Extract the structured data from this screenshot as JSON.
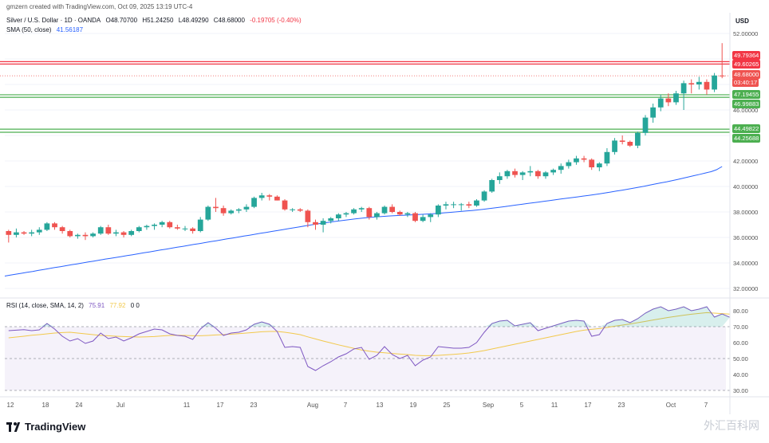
{
  "header": {
    "creator_line": "gmzern created with TradingView.com, Oct 09, 2025 13:19 UTC-4",
    "symbol": "Silver / U.S. Dollar · 1D · OANDA",
    "ohlc": [
      "O48.70700",
      "H51.24250",
      "L48.49290",
      "C48.68000",
      "-0.19705 (-0.40%)"
    ],
    "sma_label": "SMA (50, close)",
    "sma_value": "41.56187",
    "rsi_label": "RSI (14, close, SMA, 14, 2)",
    "rsi_value": "75.91",
    "rsi_sma_value": "77.92",
    "rsi_extra": "0  0"
  },
  "currency": "USD",
  "brand": "TradingView",
  "watermark": "外汇百科网",
  "price_tags": {
    "res1": "49.79364",
    "res2": "49.60265",
    "last": "48.68000",
    "countdown": "03:40:17",
    "sup1a": "47.19455",
    "sup1b": "46.99883",
    "sup2a": "44.49822",
    "sup2b": "44.25688"
  },
  "colors": {
    "up": "#26a69a",
    "down": "#ef5350",
    "sma": "#2962ff",
    "rsi": "#7e57c2",
    "rsi_ma": "#f2c94c",
    "resistance": "#f23645",
    "support": "#4caf50"
  },
  "chart_data": {
    "type": "candlestick",
    "price_axis": {
      "ylim": [
        31,
        53
      ],
      "ticks": [
        "52.00000",
        "50.00000",
        "48.00000",
        "46.00000",
        "44.00000",
        "42.00000",
        "40.00000",
        "38.00000",
        "36.00000",
        "34.00000",
        "32.00000"
      ]
    },
    "rsi_axis": {
      "ylim": [
        25,
        85
      ],
      "ticks": [
        "80.00",
        "70.00",
        "60.00",
        "50.00",
        "40.00",
        "30.00"
      ]
    },
    "x_ticks": [
      "12",
      "18",
      "24",
      "Jul",
      "11",
      "17",
      "23",
      "Aug",
      "7",
      "13",
      "19",
      "25",
      "Sep",
      "5",
      "11",
      "17",
      "23",
      "Oct",
      "7"
    ],
    "horizontal_levels": [
      49.79,
      49.6,
      47.19,
      46.99,
      44.49,
      44.25
    ],
    "candles": [
      [
        36.5,
        36.6,
        35.6,
        36.2
      ],
      [
        36.2,
        36.7,
        36.0,
        36.4
      ],
      [
        36.4,
        36.5,
        36.2,
        36.3
      ],
      [
        36.3,
        36.6,
        36.1,
        36.4
      ],
      [
        36.4,
        36.8,
        36.2,
        36.6
      ],
      [
        36.6,
        37.2,
        36.5,
        37.1
      ],
      [
        37.1,
        37.2,
        36.6,
        36.8
      ],
      [
        36.8,
        36.9,
        36.3,
        36.5
      ],
      [
        36.5,
        36.6,
        36.0,
        36.1
      ],
      [
        36.1,
        36.3,
        35.9,
        36.2
      ],
      [
        36.2,
        36.4,
        35.8,
        36.1
      ],
      [
        36.1,
        36.4,
        36.0,
        36.3
      ],
      [
        36.3,
        36.9,
        36.2,
        36.8
      ],
      [
        36.8,
        37.0,
        36.2,
        36.3
      ],
      [
        36.3,
        36.6,
        36.1,
        36.4
      ],
      [
        36.4,
        36.5,
        36.0,
        36.2
      ],
      [
        36.2,
        36.6,
        36.1,
        36.5
      ],
      [
        36.5,
        36.9,
        36.4,
        36.8
      ],
      [
        36.8,
        37.0,
        36.6,
        36.9
      ],
      [
        36.9,
        37.1,
        36.6,
        37.0
      ],
      [
        37.0,
        37.3,
        36.8,
        37.2
      ],
      [
        37.2,
        37.3,
        36.7,
        36.8
      ],
      [
        36.8,
        37.0,
        36.6,
        36.7
      ],
      [
        36.7,
        36.9,
        36.5,
        36.7
      ],
      [
        36.7,
        36.8,
        36.3,
        36.5
      ],
      [
        36.5,
        37.6,
        36.4,
        37.4
      ],
      [
        37.4,
        38.5,
        37.3,
        38.4
      ],
      [
        38.4,
        39.1,
        38.0,
        38.3
      ],
      [
        38.3,
        38.5,
        37.7,
        37.9
      ],
      [
        37.9,
        38.2,
        37.8,
        38.1
      ],
      [
        38.1,
        38.3,
        37.9,
        38.2
      ],
      [
        38.2,
        38.6,
        38.0,
        38.4
      ],
      [
        38.4,
        39.2,
        38.3,
        39.1
      ],
      [
        39.1,
        39.5,
        38.9,
        39.3
      ],
      [
        39.3,
        39.4,
        38.9,
        39.2
      ],
      [
        39.2,
        39.3,
        38.9,
        38.9
      ],
      [
        38.9,
        39.0,
        38.1,
        38.2
      ],
      [
        38.2,
        38.3,
        38.0,
        38.2
      ],
      [
        38.2,
        38.3,
        38.0,
        38.1
      ],
      [
        38.1,
        38.2,
        36.8,
        37.2
      ],
      [
        37.2,
        37.4,
        36.6,
        37.0
      ],
      [
        37.0,
        37.5,
        36.4,
        37.3
      ],
      [
        37.3,
        37.6,
        37.1,
        37.5
      ],
      [
        37.5,
        37.9,
        37.3,
        37.8
      ],
      [
        37.8,
        38.0,
        37.6,
        37.9
      ],
      [
        37.9,
        38.3,
        37.8,
        38.2
      ],
      [
        38.2,
        38.4,
        38.0,
        38.3
      ],
      [
        38.3,
        38.4,
        37.4,
        37.6
      ],
      [
        37.6,
        38.0,
        37.4,
        37.9
      ],
      [
        37.9,
        38.5,
        37.8,
        38.4
      ],
      [
        38.4,
        38.6,
        37.9,
        38.0
      ],
      [
        38.0,
        38.1,
        37.7,
        37.8
      ],
      [
        37.8,
        38.0,
        37.6,
        37.9
      ],
      [
        37.9,
        38.0,
        37.2,
        37.3
      ],
      [
        37.3,
        37.8,
        37.2,
        37.6
      ],
      [
        37.6,
        37.9,
        37.2,
        37.8
      ],
      [
        37.8,
        38.6,
        37.6,
        38.5
      ],
      [
        38.5,
        38.8,
        38.2,
        38.6
      ],
      [
        38.6,
        38.8,
        38.3,
        38.6
      ],
      [
        38.6,
        38.7,
        38.1,
        38.6
      ],
      [
        38.6,
        38.8,
        38.3,
        38.5
      ],
      [
        38.5,
        39.0,
        38.4,
        38.9
      ],
      [
        38.9,
        39.7,
        38.8,
        39.6
      ],
      [
        39.6,
        40.6,
        39.5,
        40.5
      ],
      [
        40.5,
        41.1,
        40.2,
        40.8
      ],
      [
        40.8,
        41.3,
        40.6,
        41.2
      ],
      [
        41.2,
        41.4,
        40.7,
        40.9
      ],
      [
        40.9,
        41.2,
        40.5,
        41.1
      ],
      [
        41.1,
        41.6,
        40.8,
        41.2
      ],
      [
        41.2,
        41.3,
        40.6,
        40.8
      ],
      [
        40.8,
        41.2,
        40.6,
        41.1
      ],
      [
        41.1,
        41.4,
        40.9,
        41.3
      ],
      [
        41.3,
        41.8,
        41.0,
        41.6
      ],
      [
        41.6,
        42.1,
        41.4,
        41.9
      ],
      [
        41.9,
        42.4,
        41.7,
        42.2
      ],
      [
        42.2,
        42.4,
        41.9,
        42.1
      ],
      [
        42.1,
        42.2,
        41.3,
        41.5
      ],
      [
        41.5,
        41.9,
        41.2,
        41.8
      ],
      [
        41.8,
        43.0,
        41.6,
        42.7
      ],
      [
        42.7,
        43.8,
        42.5,
        43.6
      ],
      [
        43.6,
        44.0,
        43.3,
        43.5
      ],
      [
        43.5,
        43.6,
        43.1,
        43.2
      ],
      [
        43.2,
        44.3,
        43.0,
        44.2
      ],
      [
        44.2,
        45.6,
        44.0,
        45.4
      ],
      [
        45.4,
        46.5,
        45.0,
        46.2
      ],
      [
        46.2,
        47.2,
        45.9,
        46.9
      ],
      [
        46.9,
        47.3,
        46.3,
        46.6
      ],
      [
        46.6,
        47.5,
        46.4,
        47.3
      ],
      [
        47.3,
        48.3,
        46.0,
        48.1
      ],
      [
        48.1,
        48.4,
        47.3,
        48.0
      ],
      [
        48.0,
        48.6,
        47.6,
        48.2
      ],
      [
        48.2,
        48.4,
        47.2,
        47.6
      ],
      [
        47.6,
        48.9,
        47.4,
        48.7
      ],
      [
        48.7,
        51.24,
        48.49,
        48.68
      ]
    ],
    "sma50": [
      32.97,
      33.07,
      33.17,
      33.27,
      33.37,
      33.48,
      33.58,
      33.68,
      33.78,
      33.88,
      33.98,
      34.08,
      34.18,
      34.28,
      34.38,
      34.47,
      34.57,
      34.67,
      34.77,
      34.87,
      34.97,
      35.07,
      35.17,
      35.27,
      35.37,
      35.47,
      35.57,
      35.67,
      35.77,
      35.87,
      35.97,
      36.07,
      36.17,
      36.27,
      36.37,
      36.47,
      36.57,
      36.67,
      36.77,
      36.87,
      36.97,
      37.06,
      37.15,
      37.23,
      37.31,
      37.39,
      37.46,
      37.52,
      37.58,
      37.63,
      37.67,
      37.7,
      37.73,
      37.76,
      37.79,
      37.82,
      37.86,
      37.9,
      37.95,
      38.0,
      38.05,
      38.1,
      38.16,
      38.23,
      38.3,
      38.38,
      38.46,
      38.54,
      38.62,
      38.7,
      38.78,
      38.86,
      38.94,
      39.02,
      39.1,
      39.18,
      39.26,
      39.34,
      39.43,
      39.52,
      39.62,
      39.72,
      39.82,
      39.93,
      40.04,
      40.16,
      40.28,
      40.4,
      40.53,
      40.66,
      40.8,
      40.94,
      41.08,
      41.22,
      41.56
    ],
    "rsi": [
      67.5,
      67.8,
      68.1,
      67.5,
      68.0,
      72.0,
      68.5,
      64.0,
      61.0,
      62.5,
      59.5,
      61.0,
      66.0,
      62.5,
      63.5,
      61.0,
      63.0,
      65.5,
      67.0,
      68.5,
      68.0,
      65.5,
      64.5,
      64.0,
      62.0,
      68.5,
      72.5,
      69.0,
      64.5,
      66.0,
      66.5,
      68.0,
      71.5,
      73.0,
      71.5,
      67.0,
      57.0,
      57.5,
      57.0,
      45.0,
      42.5,
      45.5,
      48.0,
      51.0,
      53.0,
      56.0,
      57.0,
      49.5,
      52.0,
      57.5,
      52.5,
      50.0,
      52.0,
      45.5,
      49.0,
      51.0,
      57.5,
      57.0,
      56.5,
      56.5,
      57.0,
      60.0,
      66.5,
      72.0,
      73.5,
      74.0,
      70.5,
      71.5,
      72.5,
      67.5,
      69.0,
      70.5,
      72.0,
      73.5,
      74.0,
      73.5,
      64.0,
      65.0,
      72.0,
      74.0,
      74.5,
      72.5,
      75.0,
      78.5,
      81.0,
      82.5,
      80.0,
      81.0,
      82.5,
      80.0,
      81.0,
      82.5,
      76.0,
      78.0,
      75.91
    ],
    "rsi_sma": [
      63.0,
      63.5,
      64.0,
      64.6,
      65.0,
      65.5,
      66.0,
      66.3,
      66.5,
      66.0,
      65.5,
      65.0,
      64.5,
      64.3,
      64.0,
      63.8,
      63.6,
      63.5,
      63.6,
      63.8,
      64.2,
      64.5,
      64.6,
      64.5,
      64.3,
      64.3,
      64.5,
      64.8,
      65.0,
      65.3,
      65.6,
      66.0,
      66.4,
      66.8,
      67.0,
      67.0,
      66.5,
      65.8,
      65.0,
      63.6,
      62.3,
      61.0,
      59.8,
      58.6,
      57.5,
      56.4,
      55.4,
      54.6,
      54.0,
      53.6,
      53.2,
      52.8,
      52.5,
      52.0,
      51.8,
      51.8,
      52.0,
      52.3,
      52.6,
      53.0,
      53.5,
      54.2,
      55.0,
      56.0,
      57.0,
      58.0,
      59.0,
      60.0,
      61.0,
      62.0,
      63.0,
      64.0,
      65.0,
      66.0,
      67.0,
      67.8,
      68.3,
      68.8,
      69.5,
      70.3,
      71.0,
      71.7,
      72.5,
      73.3,
      74.2,
      75.0,
      75.8,
      76.5,
      77.2,
      77.8,
      78.3,
      78.8,
      78.5,
      78.2,
      77.92
    ]
  }
}
